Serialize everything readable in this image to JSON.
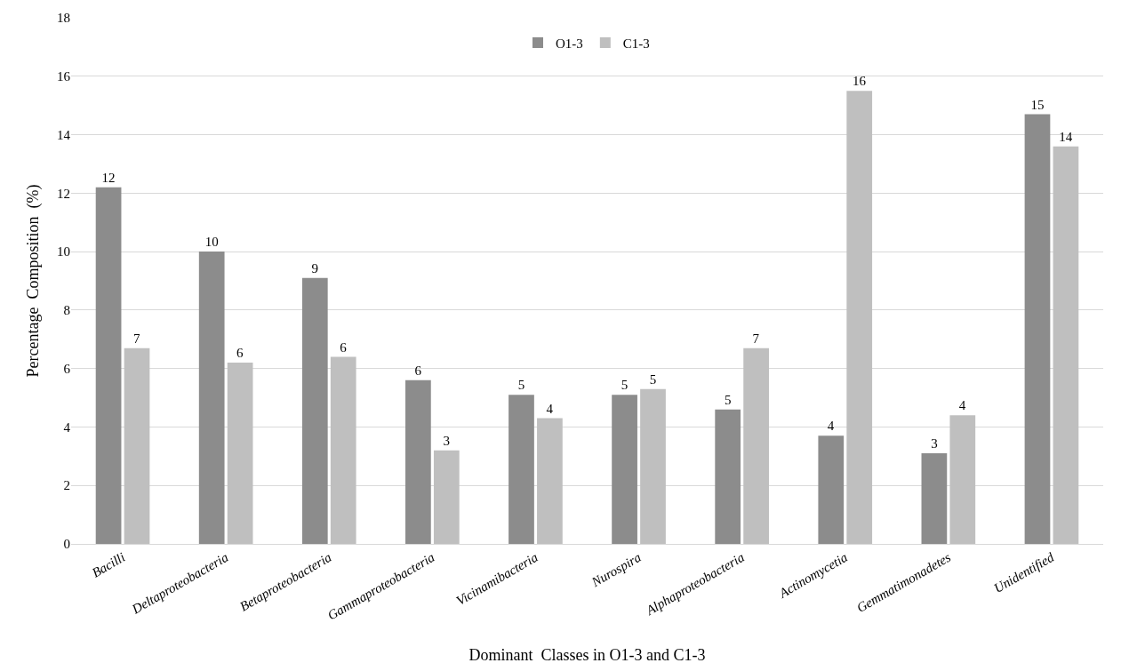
{
  "chart_data": {
    "type": "bar",
    "xlabel": "Dominant  Classes in O1-3 and C1-3",
    "ylabel": "Percentage  Composition  (%)",
    "categories": [
      "Bacilli",
      "Deltaproteobacteria",
      "Betaproteobacteria",
      "Gammaproteobacteria",
      "Vicinamibacteria",
      "Nurospira",
      "Alphaproteobacteria",
      "Actinomycetia",
      "Gemmatimonadetes",
      "Unidentified"
    ],
    "series": [
      {
        "name": "O1-3",
        "color": "#8c8c8c",
        "values": [
          12.2,
          10.0,
          9.1,
          5.6,
          5.1,
          5.1,
          4.6,
          3.7,
          3.1,
          14.7
        ],
        "value_labels": [
          "12",
          "10",
          "9",
          "6",
          "5",
          "5",
          "5",
          "4",
          "3",
          "15"
        ]
      },
      {
        "name": "C1-3",
        "color": "#bfbfbf",
        "values": [
          6.7,
          6.2,
          6.4,
          3.2,
          4.3,
          5.3,
          6.7,
          15.5,
          4.4,
          13.6
        ],
        "value_labels": [
          "7",
          "6",
          "6",
          "3",
          "4",
          "5",
          "7",
          "16",
          "4",
          "14"
        ]
      }
    ],
    "ylim": [
      0,
      18
    ],
    "yticks": [
      0,
      2,
      4,
      6,
      8,
      10,
      12,
      14,
      16,
      18
    ],
    "grid": "y",
    "legend": "top"
  }
}
